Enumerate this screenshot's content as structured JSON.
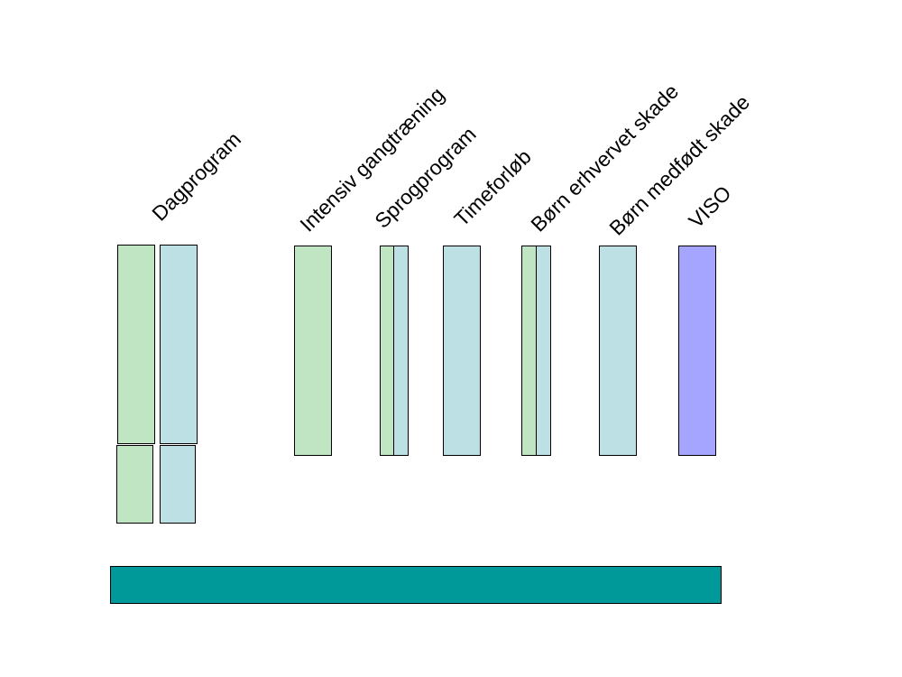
{
  "diagram": {
    "labels": {
      "dagprogram": "Dagprogram",
      "intensiv": "Intensiv gangtræning",
      "sprogprogram": "Sprogprogram",
      "timeforloeb": "Timeforløb",
      "boern_erhvervet": "Børn erhvervet skade",
      "boern_medfoedt": "Børn medfødt skade",
      "viso": "VISO"
    },
    "colors": {
      "green": "#bfe5c3",
      "light_blue": "#bde0e4",
      "purple": "#a5a5ff",
      "teal": "#00999a"
    }
  }
}
